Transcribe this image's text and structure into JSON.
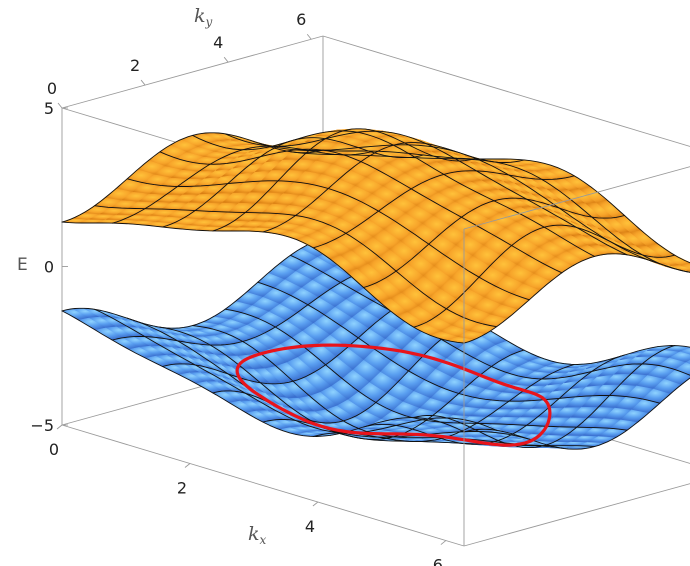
{
  "chart_data": {
    "type": "surface3d",
    "title": "",
    "function_description": "Two energy bands E(kx, ky) over 0 ≤ kx, ky ≤ 2π with a red contour on the lower band",
    "xlabel": "k",
    "xlabel_sub": "x",
    "ylabel": "k",
    "ylabel_sub": "y",
    "zlabel": "E",
    "xlim": [
      0,
      6.283
    ],
    "ylim": [
      0,
      6.283
    ],
    "zlim": [
      -5,
      5
    ],
    "x_ticks": [
      "0",
      "2",
      "4",
      "6"
    ],
    "y_ticks": [
      "0",
      "2",
      "4",
      "6"
    ],
    "z_ticks": [
      "−5",
      "0",
      "5"
    ],
    "x_tick_values": [
      0,
      2,
      4,
      6
    ],
    "y_tick_values": [
      0,
      2,
      4,
      6
    ],
    "z_tick_values": [
      -5,
      0,
      5
    ],
    "mesh_lines_per_axis": 8,
    "series": [
      {
        "band": "upper",
        "color": "#f5a623",
        "sample_values": {
          "kx_0_ky_0": 1.0,
          "kx_pi_ky_pi": 4.6,
          "kx_2pi_ky_2pi": 1.0
        }
      },
      {
        "band": "lower",
        "color": "#5b9cf0",
        "sample_values": {
          "kx_0_ky_0": -1.0,
          "kx_pi_ky_pi": -4.6,
          "kx_2pi_ky_2pi": -1.0
        }
      }
    ],
    "annotation": {
      "type": "closed contour on lower band",
      "color": "#e8141b"
    },
    "box": true
  }
}
